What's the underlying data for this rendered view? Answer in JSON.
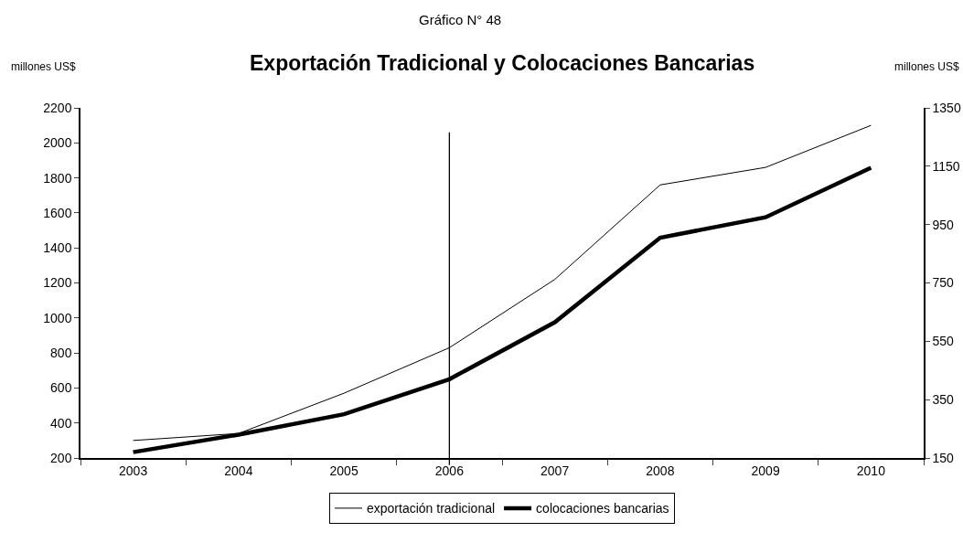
{
  "chart_data": {
    "type": "line",
    "title": "Exportación Tradicional y Colocaciones Bancarias",
    "subtitle": "Gráfico N° 48",
    "ylabel": "millones US$",
    "y2label": "millones US$",
    "categories": [
      "2003",
      "2004",
      "2005",
      "2006",
      "2007",
      "2008",
      "2009",
      "2010"
    ],
    "series": [
      {
        "name": "exportación tradicional",
        "color": "#000000",
        "values": [
          300,
          340,
          570,
          830,
          1220,
          1760,
          1860,
          2100
        ]
      },
      {
        "name": "colocaciones bancarias",
        "color": "#000000",
        "axis": "y2",
        "values": [
          170,
          230,
          300,
          420,
          615,
          905,
          975,
          1145
        ]
      }
    ],
    "ylim": [
      200,
      2200
    ],
    "yticks": [
      200,
      400,
      600,
      800,
      1000,
      1200,
      1400,
      1600,
      1800,
      2000,
      2200
    ],
    "y2lim": [
      150,
      1350
    ],
    "y2ticks": [
      150,
      350,
      550,
      750,
      950,
      1150,
      1350
    ],
    "ref_lines": [
      {
        "axis": "x",
        "value": "2006",
        "color": "#000000"
      }
    ],
    "grid": false,
    "legend": "bottom",
    "line_style": "solid",
    "marker": "none"
  }
}
